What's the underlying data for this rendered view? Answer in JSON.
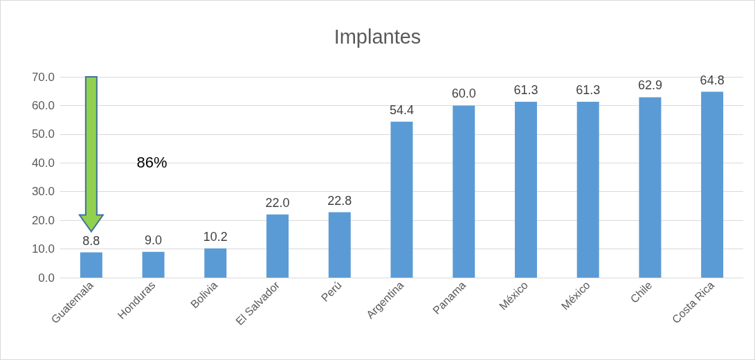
{
  "chart_data": {
    "type": "bar",
    "title": "Implantes",
    "categories": [
      "Guatemala",
      "Honduras",
      "Bolivia",
      "El Salvador",
      "Perú",
      "Argentina",
      "Panama",
      "México",
      "México",
      "Chile",
      "Costa Rica"
    ],
    "values": [
      8.8,
      9.0,
      10.2,
      22.0,
      22.8,
      54.4,
      60.0,
      61.3,
      61.3,
      62.9,
      64.8
    ],
    "value_labels": [
      "8.8",
      "9.0",
      "10.2",
      "22.0",
      "22.8",
      "54.4",
      "60.0",
      "61.3",
      "61.3",
      "62.9",
      "64.8"
    ],
    "color": "#5b9bd5",
    "ylim": [
      0,
      70
    ],
    "yticks": [
      {
        "value": 0,
        "label": "0.0"
      },
      {
        "value": 10,
        "label": "10.0"
      },
      {
        "value": 20,
        "label": "20.0"
      },
      {
        "value": 30,
        "label": "30.0"
      },
      {
        "value": 40,
        "label": "40.0"
      },
      {
        "value": 50,
        "label": "50.0"
      },
      {
        "value": 60,
        "label": "60.0"
      },
      {
        "value": 70,
        "label": "70.0"
      }
    ],
    "grid": "y",
    "annotations": [
      "86%"
    ]
  }
}
